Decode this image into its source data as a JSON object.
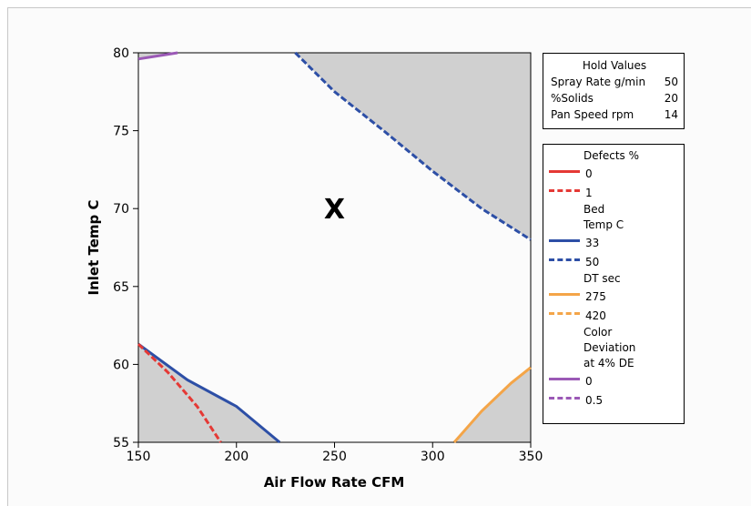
{
  "chart_data": {
    "type": "contour",
    "xlabel": "Air Flow Rate CFM",
    "ylabel": "Inlet Temp C",
    "xlim": [
      150,
      350
    ],
    "ylim": [
      55,
      80
    ],
    "xticks": [
      "150",
      "200",
      "250",
      "300",
      "350"
    ],
    "yticks": [
      "55",
      "60",
      "65",
      "70",
      "75",
      "80"
    ],
    "marker": {
      "label": "X",
      "x": 250,
      "y": 70
    },
    "shade_color": "#d0d0d0",
    "hold_values": {
      "title": "Hold Values",
      "rows": [
        {
          "name": "Spray Rate g/min",
          "value": "50"
        },
        {
          "name": "%Solids",
          "value": "20"
        },
        {
          "name": "Pan Speed rpm",
          "value": "14"
        }
      ]
    },
    "legend": [
      {
        "title": "Defects %",
        "items": [
          {
            "label": "0",
            "style": "solid",
            "color": "#e53935"
          },
          {
            "label": "1",
            "style": "dash",
            "color": "#e53935"
          }
        ]
      },
      {
        "title": "Bed Temp C",
        "title_lines": [
          "Bed",
          "Temp C"
        ],
        "items": [
          {
            "label": "33",
            "style": "solid",
            "color": "#2d4fa6"
          },
          {
            "label": "50",
            "style": "dash",
            "color": "#2d4fa6"
          }
        ]
      },
      {
        "title": "DT sec",
        "items": [
          {
            "label": "275",
            "style": "solid",
            "color": "#f4a548"
          },
          {
            "label": "420",
            "style": "dash",
            "color": "#f4a548"
          }
        ]
      },
      {
        "title": "Color Deviation at 4% DE",
        "title_lines": [
          "Color",
          "Deviation",
          "at 4% DE"
        ],
        "items": [
          {
            "label": "0",
            "style": "solid",
            "color": "#9b59b6"
          },
          {
            "label": "0.5",
            "style": "dash",
            "color": "#9b59b6"
          }
        ]
      }
    ],
    "contours": [
      {
        "name": "Bed Temp C = 50",
        "color": "#2d4fa6",
        "style": "dash",
        "points": [
          [
            230,
            80
          ],
          [
            250,
            77.5
          ],
          [
            275,
            75
          ],
          [
            300,
            72.4
          ],
          [
            325,
            70
          ],
          [
            350,
            68
          ]
        ]
      },
      {
        "name": "Bed Temp C = 33",
        "color": "#2d4fa6",
        "style": "solid",
        "points": [
          [
            150,
            61.3
          ],
          [
            175,
            59
          ],
          [
            200,
            57.3
          ],
          [
            222,
            55
          ]
        ]
      },
      {
        "name": "Defects % = 1",
        "color": "#e53935",
        "style": "dash",
        "points": [
          [
            150,
            61.3
          ],
          [
            165,
            59.5
          ],
          [
            180,
            57.3
          ],
          [
            192,
            55
          ]
        ]
      },
      {
        "name": "DT sec = 275",
        "color": "#f4a548",
        "style": "solid",
        "points": [
          [
            311,
            55
          ],
          [
            325,
            57
          ],
          [
            340,
            58.8
          ],
          [
            350,
            59.8
          ]
        ]
      },
      {
        "name": "Color Deviation at 4% DE = 0",
        "color": "#9b59b6",
        "style": "solid",
        "points": [
          [
            150,
            79.6
          ],
          [
            160,
            79.8
          ],
          [
            170,
            80
          ]
        ]
      }
    ],
    "shaded_regions": [
      {
        "name": "upper-right-excluded",
        "points": [
          [
            230,
            80
          ],
          [
            250,
            77.5
          ],
          [
            275,
            75
          ],
          [
            300,
            72.4
          ],
          [
            325,
            70
          ],
          [
            350,
            68
          ],
          [
            350,
            80
          ]
        ]
      },
      {
        "name": "lower-left-excluded",
        "points": [
          [
            150,
            61.3
          ],
          [
            175,
            59
          ],
          [
            200,
            57.3
          ],
          [
            222,
            55
          ],
          [
            150,
            55
          ]
        ]
      },
      {
        "name": "lower-right-excluded",
        "points": [
          [
            311,
            55
          ],
          [
            325,
            57
          ],
          [
            340,
            58.8
          ],
          [
            350,
            59.8
          ],
          [
            350,
            55
          ]
        ]
      },
      {
        "name": "top-left-excluded",
        "points": [
          [
            150,
            79.6
          ],
          [
            160,
            79.8
          ],
          [
            170,
            80
          ],
          [
            150,
            80
          ]
        ]
      }
    ]
  }
}
